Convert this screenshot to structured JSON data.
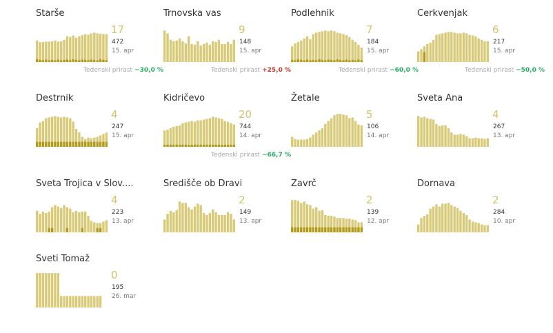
{
  "colors": {
    "bar_total": "#d9ca77",
    "bar_new": "#b09a18",
    "big_value": "#d2c26b",
    "growth_positive": "#c0392b",
    "growth_negative": "#27ae60",
    "title": "#333333"
  },
  "growth_label": "Tedenski prirast",
  "chart_data": [
    {
      "type": "bar",
      "title": "Starše",
      "current": "17",
      "total": "472",
      "date": "15. apr",
      "growth": "−30,0 %",
      "growth_sign": "negative",
      "values": [
        60,
        55,
        56,
        57,
        57,
        58,
        60,
        57,
        58,
        62,
        72,
        70,
        74,
        68,
        72,
        75,
        78,
        76,
        80,
        82,
        80,
        79,
        78,
        78
      ],
      "new": [
        8,
        6,
        5,
        7,
        5,
        6,
        5,
        7,
        5,
        6,
        7,
        5,
        8,
        6,
        5,
        7,
        6,
        5,
        7,
        6,
        5,
        8,
        6,
        5
      ]
    },
    {
      "type": "bar",
      "title": "Trnovska vas",
      "current": "9",
      "total": "148",
      "date": "15. apr",
      "growth": "+25,0 %",
      "growth_sign": "positive",
      "values": [
        88,
        80,
        62,
        58,
        60,
        66,
        58,
        52,
        72,
        50,
        48,
        58,
        46,
        50,
        54,
        48,
        58,
        56,
        62,
        50,
        50,
        56,
        50,
        62
      ],
      "new": [
        0,
        0,
        0,
        0,
        0,
        0,
        0,
        0,
        0,
        0,
        0,
        0,
        0,
        0,
        0,
        0,
        0,
        0,
        0,
        0,
        0,
        0,
        0,
        0
      ]
    },
    {
      "type": "bar",
      "title": "Podlehnik",
      "current": "7",
      "total": "184",
      "date": "15. apr",
      "growth": "−60,0 %",
      "growth_sign": "negative",
      "values": [
        44,
        52,
        56,
        60,
        66,
        72,
        64,
        78,
        82,
        84,
        86,
        88,
        86,
        88,
        86,
        82,
        80,
        78,
        75,
        70,
        62,
        56,
        48,
        40
      ],
      "new": [
        6,
        5,
        8,
        6,
        5,
        7,
        5,
        6,
        5,
        8,
        6,
        5,
        7,
        6,
        5,
        8,
        6,
        5,
        7,
        5,
        6,
        5,
        7,
        5
      ]
    },
    {
      "type": "bar",
      "title": "Cerkvenjak",
      "current": "6",
      "total": "217",
      "date": "15. apr",
      "growth": "−50,0 %",
      "growth_sign": "negative",
      "values": [
        30,
        36,
        44,
        50,
        54,
        62,
        76,
        78,
        80,
        82,
        84,
        84,
        82,
        80,
        80,
        82,
        80,
        76,
        74,
        72,
        66,
        62,
        58,
        58
      ],
      "new": [
        0,
        0,
        28,
        0,
        0,
        0,
        0,
        0,
        0,
        0,
        0,
        0,
        0,
        0,
        0,
        0,
        0,
        0,
        0,
        0,
        0,
        0,
        0,
        0
      ]
    },
    {
      "type": "bar",
      "title": "Destrnik",
      "current": "4",
      "total": "247",
      "date": "15. apr",
      "growth": "",
      "growth_sign": "",
      "values": [
        52,
        68,
        72,
        80,
        82,
        84,
        86,
        84,
        82,
        84,
        82,
        80,
        70,
        50,
        40,
        28,
        22,
        26,
        24,
        26,
        28,
        32,
        36,
        40
      ],
      "new": [
        14,
        14,
        14,
        14,
        14,
        14,
        14,
        14,
        14,
        14,
        14,
        14,
        14,
        14,
        14,
        14,
        14,
        14,
        14,
        14,
        14,
        14,
        14,
        14
      ]
    },
    {
      "type": "bar",
      "title": "Kidričevo",
      "current": "20",
      "total": "744",
      "date": "14. apr",
      "growth": "−66,7 %",
      "growth_sign": "negative",
      "values": [
        46,
        48,
        52,
        56,
        58,
        60,
        66,
        68,
        70,
        72,
        70,
        74,
        74,
        76,
        78,
        80,
        84,
        82,
        80,
        78,
        72,
        70,
        66,
        62
      ],
      "new": [
        6,
        6,
        6,
        6,
        6,
        6,
        6,
        6,
        6,
        6,
        6,
        6,
        6,
        6,
        6,
        6,
        6,
        6,
        6,
        6,
        6,
        6,
        6,
        6
      ]
    },
    {
      "type": "bar",
      "title": "Žetale",
      "current": "5",
      "total": "106",
      "date": "14. apr",
      "growth": "",
      "growth_sign": "",
      "values": [
        28,
        22,
        20,
        20,
        20,
        22,
        26,
        34,
        40,
        46,
        52,
        64,
        72,
        80,
        88,
        92,
        92,
        90,
        88,
        80,
        82,
        72,
        62,
        60
      ],
      "new": [
        0,
        0,
        0,
        0,
        0,
        0,
        0,
        0,
        0,
        0,
        0,
        0,
        0,
        0,
        0,
        0,
        0,
        0,
        0,
        0,
        0,
        0,
        0,
        0
      ]
    },
    {
      "type": "bar",
      "title": "Sveta Ana",
      "current": "4",
      "total": "267",
      "date": "13. apr",
      "growth": "",
      "growth_sign": "",
      "values": [
        86,
        82,
        84,
        80,
        78,
        76,
        64,
        58,
        60,
        60,
        52,
        40,
        34,
        34,
        36,
        34,
        30,
        24,
        24,
        26,
        24,
        24,
        22,
        24
      ],
      "new": [
        0,
        0,
        0,
        0,
        0,
        0,
        0,
        0,
        0,
        0,
        0,
        0,
        0,
        0,
        0,
        0,
        0,
        0,
        0,
        0,
        0,
        0,
        0,
        0
      ]
    },
    {
      "type": "bar",
      "title": "Sveta Trojica v Slov....",
      "current": "4",
      "total": "223",
      "date": "13. apr",
      "growth": "",
      "growth_sign": "",
      "values": [
        60,
        52,
        58,
        54,
        58,
        70,
        76,
        72,
        68,
        76,
        70,
        66,
        56,
        60,
        56,
        58,
        58,
        46,
        32,
        28,
        26,
        26,
        30,
        34
      ],
      "new": [
        0,
        0,
        0,
        0,
        12,
        12,
        0,
        0,
        0,
        0,
        12,
        0,
        0,
        0,
        0,
        12,
        0,
        0,
        0,
        0,
        12,
        12,
        0,
        0
      ]
    },
    {
      "type": "bar",
      "title": "Središče ob Dravi",
      "current": "2",
      "total": "149",
      "date": "13. apr",
      "growth": "",
      "growth_sign": "",
      "values": [
        36,
        52,
        60,
        56,
        62,
        86,
        82,
        82,
        70,
        64,
        72,
        80,
        76,
        54,
        48,
        54,
        64,
        56,
        48,
        48,
        48,
        56,
        52,
        36
      ],
      "new": [
        0,
        0,
        0,
        0,
        0,
        0,
        0,
        0,
        0,
        0,
        0,
        0,
        0,
        0,
        0,
        0,
        0,
        0,
        0,
        0,
        0,
        0,
        0,
        0
      ]
    },
    {
      "type": "bar",
      "title": "Zavrč",
      "current": "2",
      "total": "139",
      "date": "12. apr",
      "growth": "",
      "growth_sign": "",
      "values": [
        90,
        90,
        88,
        82,
        86,
        78,
        76,
        66,
        70,
        60,
        62,
        48,
        46,
        46,
        44,
        40,
        40,
        40,
        38,
        38,
        36,
        34,
        28,
        28
      ],
      "new": [
        14,
        14,
        14,
        14,
        14,
        14,
        14,
        14,
        14,
        14,
        14,
        14,
        14,
        14,
        14,
        14,
        14,
        14,
        14,
        14,
        14,
        14,
        14,
        14
      ]
    },
    {
      "type": "bar",
      "title": "Dornava",
      "current": "2",
      "total": "284",
      "date": "10. apr",
      "growth": "",
      "growth_sign": "",
      "values": [
        22,
        40,
        46,
        50,
        66,
        72,
        78,
        72,
        80,
        80,
        82,
        76,
        72,
        68,
        60,
        54,
        48,
        36,
        30,
        28,
        26,
        22,
        20,
        20
      ],
      "new": [
        0,
        0,
        0,
        0,
        0,
        0,
        0,
        0,
        0,
        0,
        0,
        0,
        0,
        0,
        0,
        0,
        0,
        0,
        0,
        0,
        0,
        0,
        0,
        0
      ]
    },
    {
      "type": "bar",
      "title": "Sveti Tomaž",
      "current": "0",
      "total": "195",
      "date": "26. mar",
      "growth": "",
      "growth_sign": "",
      "values": [
        96,
        96,
        96,
        96,
        96,
        96,
        96,
        96,
        32,
        32,
        32,
        32,
        32,
        32,
        32,
        32,
        32,
        32,
        32,
        32,
        32,
        32,
        0,
        0
      ],
      "new": [
        0,
        0,
        0,
        0,
        0,
        0,
        0,
        0,
        0,
        0,
        0,
        0,
        0,
        0,
        0,
        0,
        0,
        0,
        0,
        0,
        0,
        0,
        0,
        0
      ]
    }
  ]
}
